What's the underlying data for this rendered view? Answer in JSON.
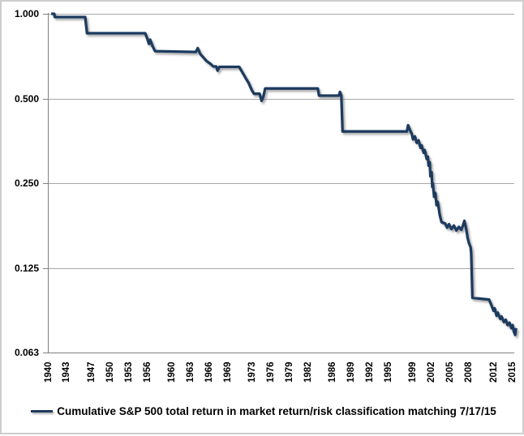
{
  "legend": {
    "label": "Cumulative S&P 500 total return in market return/risk classification matching 7/17/15"
  },
  "colors": {
    "line": "#1f3a5f",
    "grid": "#a8a8a8",
    "axis": "#808080",
    "text": "#000000",
    "border": "#cdcdcd",
    "background": "#ffffff",
    "shadow": "#6e6e6e"
  },
  "chart_data": {
    "type": "line",
    "title": "",
    "legend_position": "bottom",
    "grid": {
      "horizontal": true,
      "vertical": false
    },
    "x_axis": {
      "label": "",
      "unit": "year",
      "range": [
        1940,
        2015.6
      ],
      "tick_labels": [
        "1940",
        "1943",
        "1947",
        "1950",
        "1953",
        "1956",
        "1960",
        "1963",
        "1966",
        "1969",
        "1973",
        "1976",
        "1979",
        "1982",
        "1986",
        "1989",
        "1992",
        "1995",
        "1999",
        "2002",
        "2005",
        "2008",
        "2012",
        "2015"
      ],
      "tick_rotation_deg": -90
    },
    "y_axis": {
      "label": "",
      "scale": "log2",
      "range": [
        0.0625,
        1.0
      ],
      "ticks": [
        {
          "label": "1.000",
          "value": 1.0
        },
        {
          "label": "0.500",
          "value": 0.5
        },
        {
          "label": "0.250",
          "value": 0.25
        },
        {
          "label": "0.125",
          "value": 0.125
        },
        {
          "label": "0.063",
          "value": 0.0625
        }
      ]
    },
    "series": [
      {
        "name": "Cumulative S&P 500 total return in market return/risk classification matching 7/17/15",
        "color": "#1f3a5f",
        "points": [
          [
            1940.4,
            1.0
          ],
          [
            1940.9,
            1.0
          ],
          [
            1941.0,
            0.974
          ],
          [
            1945.9,
            0.974
          ],
          [
            1946.2,
            0.853
          ],
          [
            1955.6,
            0.853
          ],
          [
            1955.9,
            0.82
          ],
          [
            1956.2,
            0.782
          ],
          [
            1956.4,
            0.809
          ],
          [
            1956.8,
            0.767
          ],
          [
            1957.2,
            0.737
          ],
          [
            1963.8,
            0.732
          ],
          [
            1964.1,
            0.755
          ],
          [
            1964.5,
            0.72
          ],
          [
            1965.0,
            0.7
          ],
          [
            1965.5,
            0.68
          ],
          [
            1966.2,
            0.663
          ],
          [
            1966.6,
            0.65
          ],
          [
            1967.1,
            0.65
          ],
          [
            1967.3,
            0.628
          ],
          [
            1967.6,
            0.648
          ],
          [
            1970.8,
            0.648
          ],
          [
            1971.2,
            0.625
          ],
          [
            1971.6,
            0.604
          ],
          [
            1971.9,
            0.588
          ],
          [
            1972.3,
            0.569
          ],
          [
            1972.6,
            0.55
          ],
          [
            1972.9,
            0.532
          ],
          [
            1973.2,
            0.52
          ],
          [
            1974.1,
            0.52
          ],
          [
            1974.4,
            0.491
          ],
          [
            1974.7,
            0.508
          ],
          [
            1975.0,
            0.543
          ],
          [
            1983.5,
            0.543
          ],
          [
            1983.7,
            0.512
          ],
          [
            1986.9,
            0.512
          ],
          [
            1987.1,
            0.528
          ],
          [
            1987.3,
            0.512
          ],
          [
            1987.5,
            0.382
          ],
          [
            1997.9,
            0.382
          ],
          [
            1998.1,
            0.402
          ],
          [
            1998.4,
            0.387
          ],
          [
            1998.7,
            0.374
          ],
          [
            1998.9,
            0.358
          ],
          [
            1999.2,
            0.367
          ],
          [
            1999.5,
            0.348
          ],
          [
            1999.8,
            0.355
          ],
          [
            2000.1,
            0.334
          ],
          [
            2000.3,
            0.341
          ],
          [
            2000.6,
            0.321
          ],
          [
            2000.8,
            0.328
          ],
          [
            2001.1,
            0.305
          ],
          [
            2001.3,
            0.311
          ],
          [
            2001.4,
            0.289
          ],
          [
            2001.6,
            0.297
          ],
          [
            2001.7,
            0.265
          ],
          [
            2001.9,
            0.274
          ],
          [
            2002.0,
            0.243
          ],
          [
            2002.1,
            0.25
          ],
          [
            2002.3,
            0.224
          ],
          [
            2002.5,
            0.231
          ],
          [
            2002.7,
            0.209
          ],
          [
            2002.9,
            0.215
          ],
          [
            2003.2,
            0.194
          ],
          [
            2003.5,
            0.182
          ],
          [
            2004.1,
            0.18
          ],
          [
            2004.4,
            0.174
          ],
          [
            2004.7,
            0.179
          ],
          [
            2005.1,
            0.172
          ],
          [
            2005.5,
            0.177
          ],
          [
            2005.9,
            0.17
          ],
          [
            2006.3,
            0.175
          ],
          [
            2006.7,
            0.171
          ],
          [
            2007.0,
            0.178
          ],
          [
            2007.2,
            0.184
          ],
          [
            2007.5,
            0.172
          ],
          [
            2007.7,
            0.161
          ],
          [
            2007.9,
            0.154
          ],
          [
            2008.2,
            0.148
          ],
          [
            2008.3,
            0.141
          ],
          [
            2008.5,
            0.098
          ],
          [
            2011.2,
            0.0966
          ],
          [
            2011.6,
            0.0918
          ],
          [
            2011.9,
            0.0882
          ],
          [
            2012.1,
            0.0899
          ],
          [
            2012.4,
            0.0846
          ],
          [
            2012.6,
            0.0868
          ],
          [
            2013.0,
            0.0825
          ],
          [
            2013.2,
            0.0841
          ],
          [
            2013.6,
            0.0804
          ],
          [
            2013.9,
            0.0819
          ],
          [
            2014.2,
            0.0784
          ],
          [
            2014.5,
            0.0799
          ],
          [
            2014.8,
            0.0765
          ],
          [
            2015.0,
            0.0784
          ],
          [
            2015.2,
            0.0742
          ],
          [
            2015.4,
            0.0724
          ],
          [
            2015.55,
            0.0765
          ]
        ]
      }
    ]
  }
}
